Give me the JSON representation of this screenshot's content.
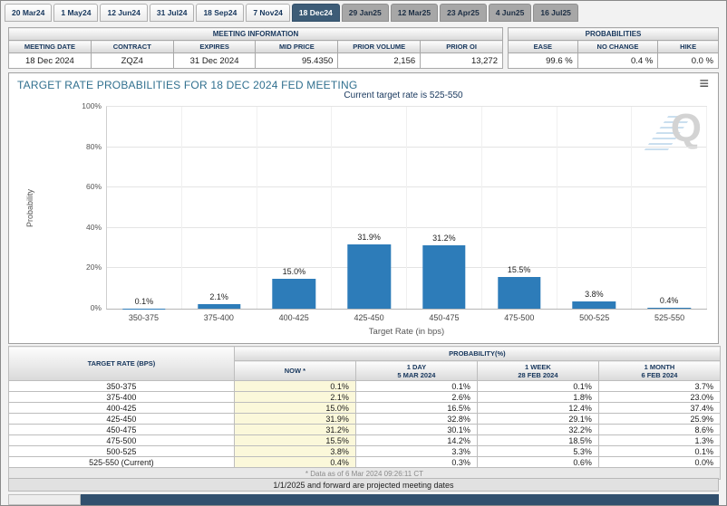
{
  "tabs": [
    {
      "label": "20 Mar24",
      "state": "past"
    },
    {
      "label": "1 May24",
      "state": "past"
    },
    {
      "label": "12 Jun24",
      "state": "past"
    },
    {
      "label": "31 Jul24",
      "state": "past"
    },
    {
      "label": "18 Sep24",
      "state": "past"
    },
    {
      "label": "7 Nov24",
      "state": "past"
    },
    {
      "label": "18 Dec24",
      "state": "selected"
    },
    {
      "label": "29 Jan25",
      "state": "future"
    },
    {
      "label": "12 Mar25",
      "state": "future"
    },
    {
      "label": "23 Apr25",
      "state": "future"
    },
    {
      "label": "4 Jun25",
      "state": "future"
    },
    {
      "label": "16 Jul25",
      "state": "future"
    }
  ],
  "meeting_information": {
    "title": "MEETING INFORMATION",
    "headers": [
      "MEETING DATE",
      "CONTRACT",
      "EXPIRES",
      "MID PRICE",
      "PRIOR VOLUME",
      "PRIOR OI"
    ],
    "values": [
      "18 Dec 2024",
      "ZQZ4",
      "31 Dec 2024",
      "95.4350",
      "2,156",
      "13,272"
    ]
  },
  "probabilities_summary": {
    "title": "PROBABILITIES",
    "headers": [
      "EASE",
      "NO CHANGE",
      "HIKE"
    ],
    "values": [
      "99.6 %",
      "0.4 %",
      "0.0 %"
    ]
  },
  "chart": {
    "title": "TARGET RATE PROBABILITIES FOR 18 DEC 2024 FED MEETING",
    "subtitle": "Current target rate is 525-550",
    "menu_icon": "≡",
    "watermark_letter": "Q"
  },
  "chart_data": {
    "type": "bar",
    "categories": [
      "350-375",
      "375-400",
      "400-425",
      "425-450",
      "450-475",
      "475-500",
      "500-525",
      "525-550"
    ],
    "values": [
      0.1,
      2.1,
      15.0,
      31.9,
      31.2,
      15.5,
      3.8,
      0.4
    ],
    "labels": [
      "0.1%",
      "2.1%",
      "15.0%",
      "31.9%",
      "31.2%",
      "15.5%",
      "3.8%",
      "0.4%"
    ],
    "title": "TARGET RATE PROBABILITIES FOR 18 DEC 2024 FED MEETING",
    "xlabel": "Target Rate (in bps)",
    "ylabel": "Probability",
    "ylim": [
      0,
      100
    ],
    "yticks": [
      "0%",
      "20%",
      "40%",
      "60%",
      "80%",
      "100%"
    ],
    "bar_color": "#2d7cb9",
    "grid": true,
    "legend": false
  },
  "table": {
    "col1_header": "TARGET RATE (BPS)",
    "group_header": "PROBABILITY(%)",
    "sub_headers": [
      {
        "line1": "NOW *",
        "line2": ""
      },
      {
        "line1": "1 DAY",
        "line2": "5 MAR 2024"
      },
      {
        "line1": "1 WEEK",
        "line2": "28 FEB 2024"
      },
      {
        "line1": "1 MONTH",
        "line2": "6 FEB 2024"
      }
    ],
    "rows": [
      [
        "350-375",
        "0.1%",
        "0.1%",
        "0.1%",
        "3.7%"
      ],
      [
        "375-400",
        "2.1%",
        "2.6%",
        "1.8%",
        "23.0%"
      ],
      [
        "400-425",
        "15.0%",
        "16.5%",
        "12.4%",
        "37.4%"
      ],
      [
        "425-450",
        "31.9%",
        "32.8%",
        "29.1%",
        "25.9%"
      ],
      [
        "450-475",
        "31.2%",
        "30.1%",
        "32.2%",
        "8.6%"
      ],
      [
        "475-500",
        "15.5%",
        "14.2%",
        "18.5%",
        "1.3%"
      ],
      [
        "500-525",
        "3.8%",
        "3.3%",
        "5.3%",
        "0.1%"
      ],
      [
        "525-550 (Current)",
        "0.4%",
        "0.3%",
        "0.6%",
        "0.0%"
      ]
    ],
    "footnote": "* Data as of 6 Mar 2024 09:26:11 CT"
  },
  "footer_note": "1/1/2025 and forward are projected meeting dates",
  "colors": {
    "bar": "#2d7cb9",
    "selected_tab": "#3d5c77",
    "now_column_bg": "#fbf8da",
    "chart_title": "#31708f"
  }
}
